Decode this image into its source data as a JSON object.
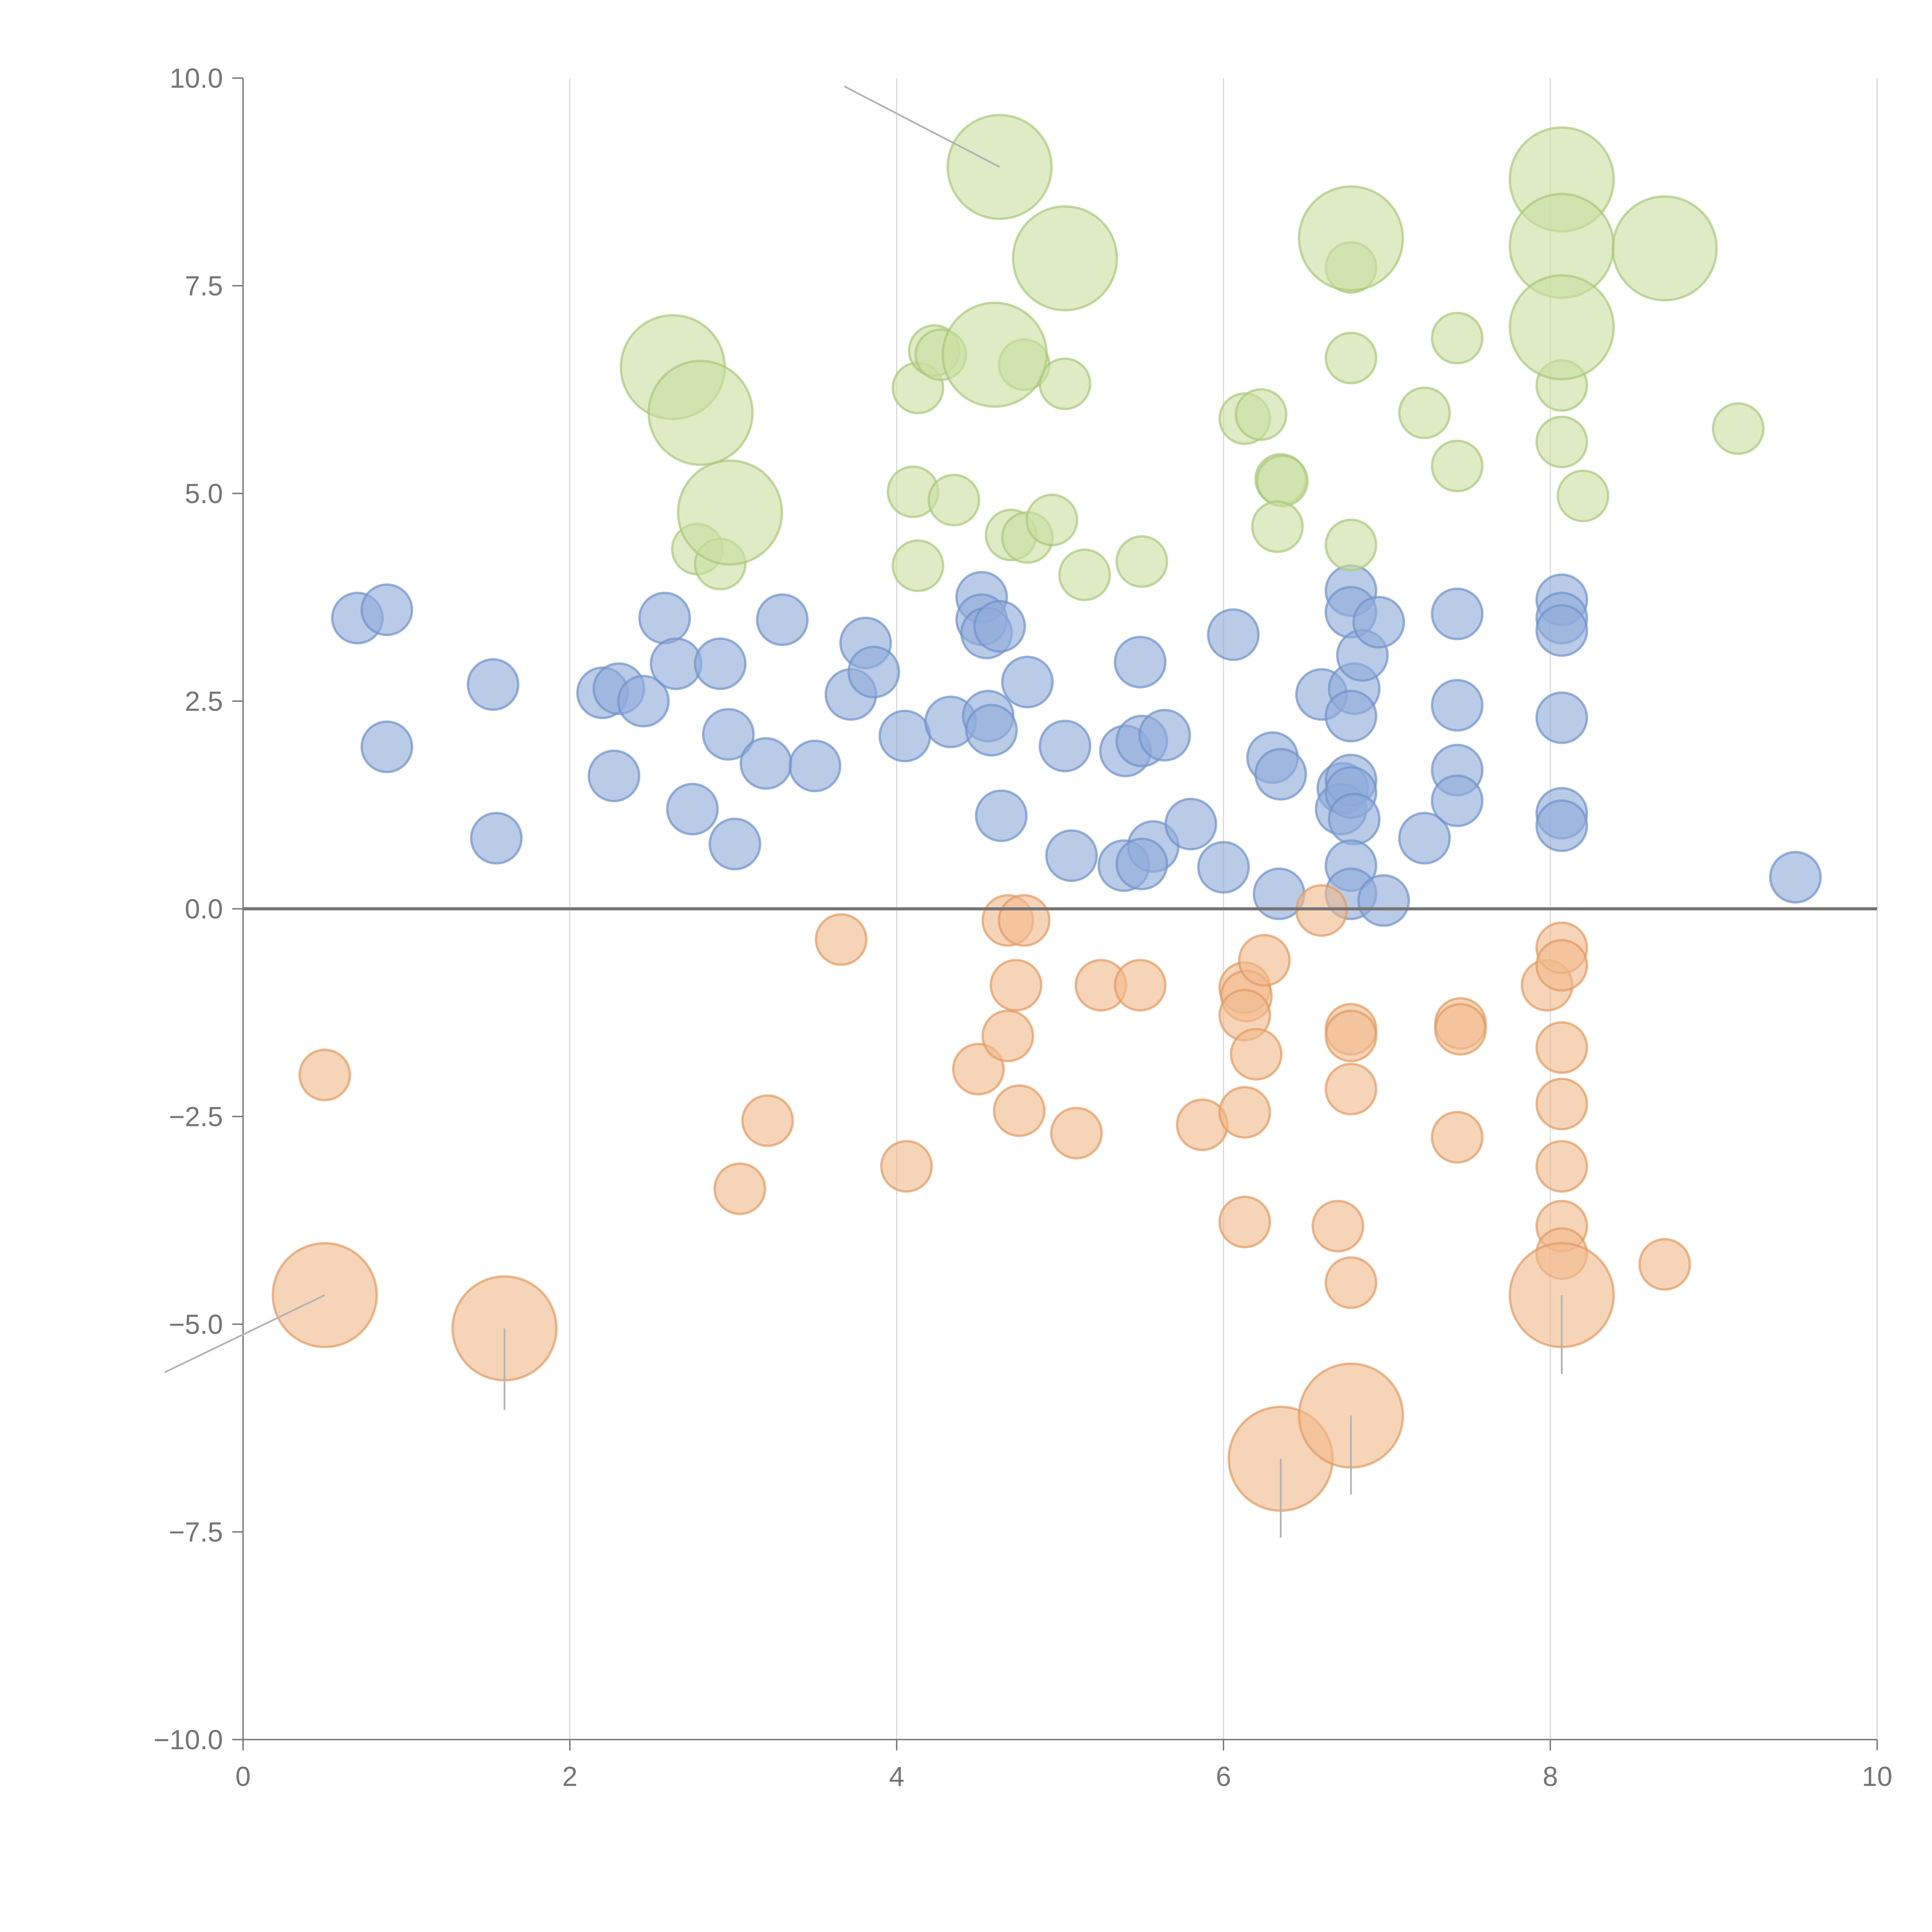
{
  "chart_data": {
    "type": "scatter",
    "title": "",
    "xlabel": "",
    "ylabel": "",
    "xlim": [
      0,
      10
    ],
    "ylim": [
      -10,
      10
    ],
    "grid": "vertical lines only",
    "x_ticks": [
      "0",
      "2",
      "4",
      "6",
      "8",
      "10"
    ],
    "y_ticks": [
      "10.0",
      "7.5",
      "5.0",
      "2.5",
      "0.0",
      "−2.5",
      "−5.0",
      "−7.5",
      "−10.0"
    ],
    "y_tick_values": [
      10,
      7.5,
      5,
      2.5,
      0,
      -2.5,
      -5,
      -7.5,
      -10
    ],
    "x_tick_values": [
      0,
      2,
      4,
      6,
      8,
      10
    ],
    "series": [
      {
        "name": "blue",
        "color": "#8fabda",
        "stroke": "#6f91c9",
        "points": [
          [
            0.7,
            3.5
          ],
          [
            0.88,
            3.6
          ],
          [
            1.53,
            2.7
          ],
          [
            0.88,
            1.95
          ],
          [
            1.55,
            0.85
          ],
          [
            2.2,
            2.6
          ],
          [
            2.3,
            2.65
          ],
          [
            2.45,
            2.5
          ],
          [
            2.27,
            1.6
          ],
          [
            2.58,
            3.5
          ],
          [
            2.65,
            2.95
          ],
          [
            2.92,
            2.95
          ],
          [
            2.97,
            2.1
          ],
          [
            2.75,
            1.2
          ],
          [
            3.01,
            0.78
          ],
          [
            3.2,
            1.75
          ],
          [
            3.3,
            3.48
          ],
          [
            3.5,
            1.72
          ],
          [
            3.72,
            2.58
          ],
          [
            3.81,
            3.2
          ],
          [
            3.86,
            2.85
          ],
          [
            4.05,
            2.08
          ],
          [
            4.33,
            2.25
          ],
          [
            4.52,
            3.75
          ],
          [
            4.52,
            3.48
          ],
          [
            4.55,
            3.32
          ],
          [
            4.63,
            3.4
          ],
          [
            4.56,
            2.32
          ],
          [
            4.58,
            2.15
          ],
          [
            4.64,
            1.12
          ],
          [
            4.8,
            2.73
          ],
          [
            5.03,
            1.96
          ],
          [
            5.07,
            0.64
          ],
          [
            5.39,
            0.52
          ],
          [
            5.4,
            1.9
          ],
          [
            5.49,
            2.97
          ],
          [
            5.5,
            2.02
          ],
          [
            5.57,
            0.75
          ],
          [
            5.5,
            0.54
          ],
          [
            5.64,
            2.09
          ],
          [
            5.8,
            1.02
          ],
          [
            6.06,
            3.3
          ],
          [
            6.0,
            0.5
          ],
          [
            6.3,
            1.82
          ],
          [
            6.35,
            1.62
          ],
          [
            6.34,
            0.18
          ],
          [
            6.6,
            2.58
          ],
          [
            6.73,
            1.45
          ],
          [
            6.72,
            1.2
          ],
          [
            6.78,
            1.55
          ],
          [
            6.78,
            1.4
          ],
          [
            6.8,
            1.08
          ],
          [
            6.78,
            3.83
          ],
          [
            6.78,
            3.57
          ],
          [
            6.8,
            2.65
          ],
          [
            6.78,
            2.32
          ],
          [
            6.85,
            3.05
          ],
          [
            6.95,
            3.45
          ],
          [
            6.78,
            0.52
          ],
          [
            6.78,
            0.18
          ],
          [
            6.98,
            0.1
          ],
          [
            7.23,
            0.85
          ],
          [
            7.43,
            3.55
          ],
          [
            7.43,
            2.45
          ],
          [
            7.43,
            1.67
          ],
          [
            7.43,
            1.3
          ],
          [
            8.07,
            3.72
          ],
          [
            8.07,
            3.5
          ],
          [
            8.07,
            3.35
          ],
          [
            8.07,
            2.3
          ],
          [
            8.07,
            1.15
          ],
          [
            8.07,
            1.0
          ],
          [
            9.5,
            0.38
          ]
        ],
        "size": [
          16
        ]
      },
      {
        "name": "orange",
        "color": "#f0b98d",
        "stroke": "#e39a5f",
        "points": [
          [
            0.5,
            -2.0,
            16
          ],
          [
            3.66,
            -0.37,
            16
          ],
          [
            3.21,
            -2.55,
            16
          ],
          [
            3.04,
            -3.37,
            16
          ],
          [
            4.06,
            -3.1,
            16
          ],
          [
            4.5,
            -1.93,
            16
          ],
          [
            4.68,
            -0.14,
            16
          ],
          [
            4.78,
            -0.14,
            16
          ],
          [
            4.73,
            -0.92,
            16
          ],
          [
            4.68,
            -1.53,
            16
          ],
          [
            4.75,
            -2.43,
            16
          ],
          [
            5.1,
            -2.7,
            16
          ],
          [
            5.25,
            -0.92,
            16
          ],
          [
            5.49,
            -0.92,
            16
          ],
          [
            5.87,
            -2.6,
            16
          ],
          [
            6.13,
            -0.95,
            16
          ],
          [
            6.14,
            -1.05,
            16
          ],
          [
            6.13,
            -1.28,
            16
          ],
          [
            6.25,
            -0.62,
            16
          ],
          [
            6.2,
            -1.75,
            16
          ],
          [
            6.13,
            -2.45,
            16
          ],
          [
            6.13,
            -3.77,
            16
          ],
          [
            6.6,
            -0.02,
            16
          ],
          [
            6.78,
            -1.45,
            16
          ],
          [
            6.78,
            -1.53,
            16
          ],
          [
            6.78,
            -2.17,
            16
          ],
          [
            6.7,
            -3.82,
            16
          ],
          [
            6.78,
            -4.5,
            16
          ],
          [
            7.45,
            -1.38,
            16
          ],
          [
            7.45,
            -1.45,
            16
          ],
          [
            7.43,
            -2.75,
            16
          ],
          [
            7.98,
            -0.92,
            16
          ],
          [
            8.07,
            -0.47,
            16
          ],
          [
            8.07,
            -0.68,
            16
          ],
          [
            8.07,
            -1.67,
            16
          ],
          [
            8.07,
            -2.35,
            16
          ],
          [
            8.07,
            -3.1,
            16
          ],
          [
            8.07,
            -3.82,
            16
          ],
          [
            8.07,
            -4.15,
            16
          ],
          [
            8.7,
            -4.28,
            16
          ],
          [
            0.5,
            -4.65,
            33
          ],
          [
            1.6,
            -5.05,
            33
          ],
          [
            6.35,
            -6.62,
            33
          ],
          [
            6.78,
            -6.1,
            33
          ],
          [
            8.07,
            -4.65,
            33
          ]
        ]
      },
      {
        "name": "green",
        "color": "#c9de9f",
        "stroke": "#a9c77a",
        "points": [
          [
            2.78,
            4.33,
            16
          ],
          [
            2.92,
            4.15,
            16
          ],
          [
            4.1,
            5.02,
            16
          ],
          [
            4.13,
            6.27,
            16
          ],
          [
            4.13,
            4.13,
            16
          ],
          [
            4.23,
            6.72,
            16
          ],
          [
            4.27,
            6.67,
            16
          ],
          [
            4.35,
            4.92,
            16
          ],
          [
            4.7,
            4.5,
            16
          ],
          [
            4.8,
            4.47,
            16
          ],
          [
            4.78,
            6.55,
            16
          ],
          [
            4.95,
            4.68,
            16
          ],
          [
            5.03,
            6.32,
            16
          ],
          [
            5.15,
            4.02,
            16
          ],
          [
            5.5,
            4.18,
            16
          ],
          [
            6.13,
            5.9,
            16
          ],
          [
            6.23,
            5.95,
            16
          ],
          [
            6.35,
            5.17,
            16
          ],
          [
            6.36,
            5.15,
            16
          ],
          [
            6.33,
            4.6,
            16
          ],
          [
            6.78,
            7.72,
            16
          ],
          [
            6.78,
            6.63,
            16
          ],
          [
            6.78,
            4.38,
            16
          ],
          [
            7.23,
            5.97,
            16
          ],
          [
            7.43,
            6.87,
            16
          ],
          [
            7.43,
            5.33,
            16
          ],
          [
            8.07,
            6.3,
            16
          ],
          [
            8.07,
            5.62,
            16
          ],
          [
            8.2,
            4.97,
            16
          ],
          [
            9.15,
            5.78,
            16
          ],
          [
            2.63,
            6.52,
            33
          ],
          [
            2.8,
            5.97,
            33
          ],
          [
            2.98,
            4.77,
            33
          ],
          [
            4.63,
            8.93,
            33
          ],
          [
            4.6,
            6.67,
            33
          ],
          [
            5.03,
            7.83,
            33
          ],
          [
            6.78,
            8.07,
            33
          ],
          [
            8.07,
            8.78,
            33
          ],
          [
            8.07,
            7.98,
            33
          ],
          [
            8.07,
            7.0,
            33
          ],
          [
            8.7,
            7.95,
            33
          ]
        ]
      }
    ],
    "annotations": [
      {
        "text": "",
        "x1": 4.63,
        "y1": 8.93,
        "x2": 3.68,
        "y2": 9.9
      },
      {
        "text": "",
        "x1": 0.5,
        "y1": -4.65,
        "x2": -0.48,
        "y2": -5.58
      },
      {
        "text": "",
        "x1": 1.6,
        "y1": -5.05,
        "x2": 1.6,
        "y2": -6.03
      },
      {
        "text": "",
        "x1": 6.35,
        "y1": -6.62,
        "x2": 6.35,
        "y2": -7.57
      },
      {
        "text": "",
        "x1": 6.78,
        "y1": -6.1,
        "x2": 6.78,
        "y2": -7.05
      },
      {
        "text": "",
        "x1": 8.07,
        "y1": -4.65,
        "x2": 8.07,
        "y2": -5.6
      }
    ]
  }
}
